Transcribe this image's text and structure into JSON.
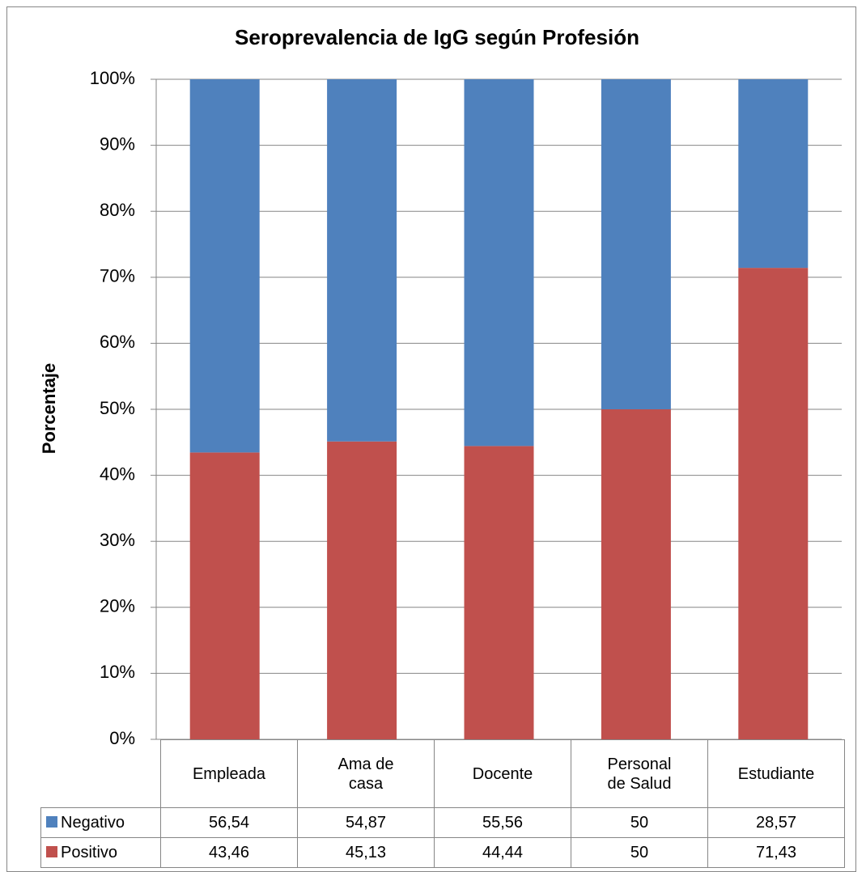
{
  "chart_data": {
    "type": "stacked_bar",
    "title": "Seroprevalencia de IgG según Profesión",
    "y_label": "Porcentaje",
    "categories": [
      "Empleada",
      "Ama de casa",
      "Docente",
      "Personal de Salud",
      "Estudiante"
    ],
    "series": [
      {
        "name": "Negativo",
        "color": "#4f81bd",
        "values": [
          56.54,
          54.87,
          55.56,
          50,
          28.57
        ],
        "value_labels": [
          "56,54",
          "54,87",
          "55,56",
          "50",
          "28,57"
        ]
      },
      {
        "name": "Positivo",
        "color": "#c0504d",
        "values": [
          43.46,
          45.13,
          44.44,
          50,
          71.43
        ],
        "value_labels": [
          "43,46",
          "45,13",
          "44,44",
          "50",
          "71,43"
        ]
      }
    ],
    "ylim": [
      0,
      100
    ],
    "yticks": [
      {
        "value": 0,
        "label": "0%"
      },
      {
        "value": 10,
        "label": "10%"
      },
      {
        "value": 20,
        "label": "20%"
      },
      {
        "value": 30,
        "label": "30%"
      },
      {
        "value": 40,
        "label": "40%"
      },
      {
        "value": 50,
        "label": "50%"
      },
      {
        "value": 60,
        "label": "60%"
      },
      {
        "value": 70,
        "label": "70%"
      },
      {
        "value": 80,
        "label": "80%"
      },
      {
        "value": 90,
        "label": "90%"
      },
      {
        "value": 100,
        "label": "100%"
      }
    ],
    "grid": true
  }
}
